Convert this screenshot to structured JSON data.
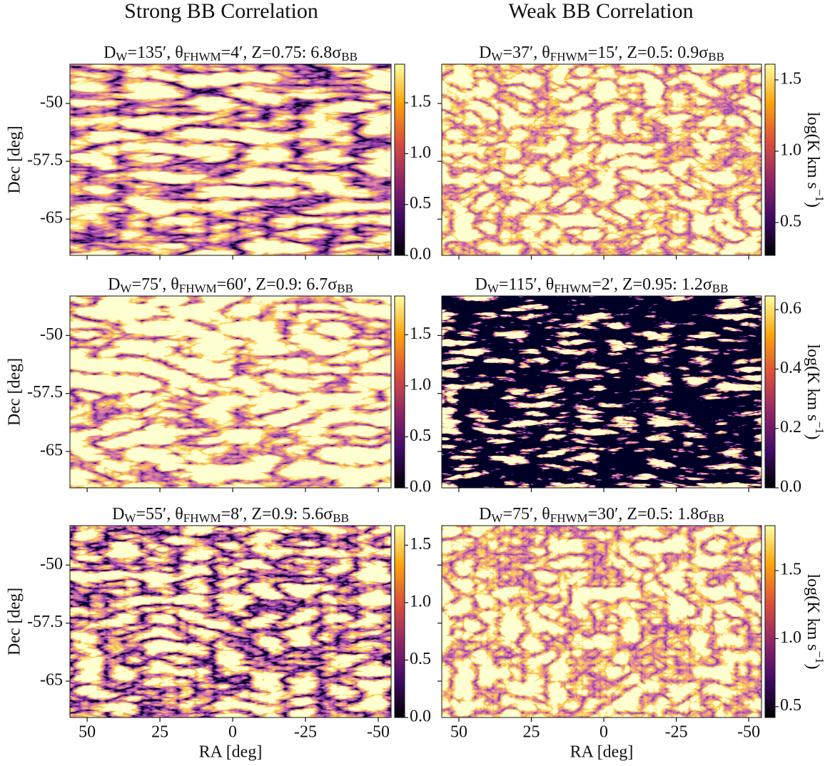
{
  "column_titles": [
    "Strong BB Correlation",
    "Weak BB Correlation"
  ],
  "chart_data": [
    {
      "type": "image",
      "title": [
        "D",
        "W",
        "=135′, θ",
        "FHWM",
        "=4′, Z=0.75: 6.8σ",
        "BB"
      ],
      "ylabel": "Dec [deg]",
      "xlim": [
        55.9,
        -54.4
      ],
      "xticks": [
        50,
        25,
        0,
        -25,
        -50
      ],
      "ylim": [
        -69.7,
        -44.9
      ],
      "yticks": [
        -50,
        -57.5,
        -65
      ],
      "colorbar": {
        "lim": [
          0,
          1.88
        ],
        "ticks": [
          {
            "value": 0,
            "label": "0.0"
          },
          0.5,
          {
            "value": 1,
            "label": "1.0"
          },
          1.5
        ]
      }
    },
    {
      "type": "image",
      "title": [
        "D",
        "W",
        "=37′, θ",
        "FHWM",
        "=15′, Z=0.5: 0.9σ",
        "BB"
      ],
      "xlim": [
        55.9,
        -54.4
      ],
      "xticks": [
        50,
        25,
        0,
        -25,
        -50
      ],
      "ylim": [
        -69.7,
        -44.9
      ],
      "yticks": [
        -50,
        -57.5,
        -65
      ],
      "colorbar": {
        "lim": [
          0.27,
          1.61
        ],
        "ticks": [
          0.5,
          {
            "value": 1,
            "label": "1.0"
          },
          1.5
        ],
        "label": [
          "log(K km s",
          "−1",
          ")"
        ]
      }
    },
    {
      "type": "image",
      "title": [
        "D",
        "W",
        "=75′, θ",
        "FHWM",
        "=60′, Z=0.9: 6.7σ",
        "BB"
      ],
      "ylabel": "Dec [deg]",
      "xlim": [
        55.9,
        -54.4
      ],
      "xticks": [
        50,
        25,
        0,
        -25,
        -50
      ],
      "ylim": [
        -69.7,
        -44.9
      ],
      "yticks": [
        -50,
        -57.5,
        -65
      ],
      "colorbar": {
        "lim": [
          0,
          1.88
        ],
        "ticks": [
          {
            "value": 0,
            "label": "0.0"
          },
          0.5,
          {
            "value": 1,
            "label": "1.0"
          },
          1.5
        ]
      }
    },
    {
      "type": "image",
      "title": [
        "D",
        "W",
        "=115′, θ",
        "FHWM",
        "=2′, Z=0.95: 1.2σ",
        "BB"
      ],
      "xlim": [
        55.9,
        -54.4
      ],
      "xticks": [
        50,
        25,
        0,
        -25,
        -50
      ],
      "ylim": [
        -69.7,
        -44.9
      ],
      "yticks": [
        -50,
        -57.5,
        -65
      ],
      "colorbar": {
        "lim": [
          0,
          0.646
        ],
        "ticks": [
          {
            "value": 0,
            "label": "0.0"
          },
          0.2,
          0.4,
          0.6
        ],
        "label": [
          "log(K km s",
          "−1",
          ")"
        ]
      }
    },
    {
      "type": "image",
      "title": [
        "D",
        "W",
        "=55′, θ",
        "FHWM",
        "=8′, Z=0.9: 5.6σ",
        "BB"
      ],
      "ylabel": "Dec [deg]",
      "xlabel": "RA [deg]",
      "xlim": [
        55.9,
        -54.4
      ],
      "xticks": [
        50,
        25,
        0,
        -25,
        -50
      ],
      "ylim": [
        -69.7,
        -44.9
      ],
      "yticks": [
        -50,
        -57.5,
        -65
      ],
      "colorbar": {
        "lim": [
          0,
          1.67
        ],
        "ticks": [
          {
            "value": 0,
            "label": "0.0"
          },
          0.5,
          {
            "value": 1,
            "label": "1.0"
          },
          1.5
        ]
      }
    },
    {
      "type": "image",
      "title": [
        "D",
        "W",
        "=75′, θ",
        "FHWM",
        "=30′, Z=0.5: 1.8σ",
        "BB"
      ],
      "xlabel": "RA [deg]",
      "xlim": [
        55.9,
        -54.4
      ],
      "xticks": [
        50,
        25,
        0,
        -25,
        -50
      ],
      "ylim": [
        -69.7,
        -44.9
      ],
      "yticks": [
        -50,
        -57.5,
        -65
      ],
      "colorbar": {
        "lim": [
          0.42,
          1.83
        ],
        "ticks": [
          0.5,
          {
            "value": 1,
            "label": "1.0"
          },
          1.5
        ],
        "label": [
          "log(K km s",
          "−1",
          ")"
        ]
      }
    }
  ]
}
